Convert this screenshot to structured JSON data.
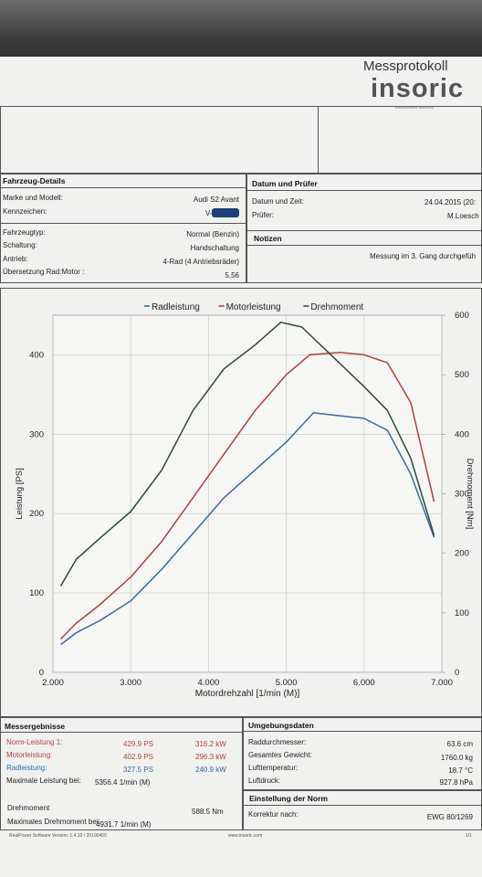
{
  "header": {
    "title": "Messprotokoll",
    "brand": "insoric",
    "brand_tagline": "measurement resolving"
  },
  "vehicle": {
    "section": "Fahrzeug-Details",
    "rows": [
      {
        "label": "Marke und Modell:",
        "value": "Audi S2 Avant"
      },
      {
        "label": "Kennzeichen:",
        "value": "V-"
      },
      {
        "label": "Fahrzeugtyp:",
        "value": "Normal (Benzin)"
      },
      {
        "label": "Schaltung:",
        "value": "Handschaltung"
      },
      {
        "label": "Antrieb:",
        "value": "4-Rad (4 Antriebsräder)"
      },
      {
        "label": "Übersetzung Rad:Motor :",
        "value": "5.56"
      }
    ]
  },
  "date": {
    "section": "Datum und Prüfer",
    "datetime_label": "Datum und Zeit:",
    "datetime_value": "24.04.2015 (20:",
    "examiner_label": "Prüfer:",
    "examiner_value": "M.Loesch"
  },
  "notes": {
    "section": "Notizen",
    "text": "Messung im 3. Gang durchgefüh"
  },
  "results": {
    "section": "Messergebnisse",
    "rows": [
      {
        "label": "Norm-Leistung 1:",
        "ps": "429.9 PS",
        "kw": "316.2 kW",
        "color": "#b04040"
      },
      {
        "label": "Motorleistung:",
        "ps": "402.9 PS",
        "kw": "296.3 kW",
        "color": "#b04040"
      },
      {
        "label": "Radleistung:",
        "ps": "327.5 PS",
        "kw": "240.9 kW",
        "color": "#3d66a8"
      }
    ],
    "max_power_label": "Maximale Leistung bei:",
    "max_power_value": "5356.4 1/min (M)",
    "torque_label": "Drehmoment",
    "torque_value": "588.5 Nm",
    "max_torque_label": "Maximales Drehmoment bei:",
    "max_torque_value": "4931.7 1/min (M)"
  },
  "environment": {
    "section": "Umgebungsdaten",
    "rows": [
      {
        "label": "Raddurchmesser:",
        "value": "63.6 cm"
      },
      {
        "label": "Gesamtes Gewicht:",
        "value": "1760.0 kg"
      },
      {
        "label": "Lufttemperatur:",
        "value": "18.7 °C"
      },
      {
        "label": "Luftdruck:",
        "value": "927.8 hPa"
      }
    ]
  },
  "norm": {
    "section": "Einstellung der Norm",
    "label": "Korrektur nach:",
    "value": "EWG 80/1269"
  },
  "footer": {
    "software": "RealPower Software Version: 1.4.10 / 20100409",
    "website": "www.insoric.com",
    "page": "1/1"
  },
  "chart_data": {
    "type": "line",
    "title": "",
    "xlabel": "Motordrehzahl [1/min (M)]",
    "ylabel": "Leistung [PS]",
    "y2label": "Drehmoment [Nm]",
    "xlim": [
      2000,
      7000
    ],
    "ylim": [
      0,
      450
    ],
    "y2lim": [
      0,
      600
    ],
    "x_ticks": [
      "2.000",
      "3.000",
      "4.000",
      "5.000",
      "6.000",
      "7.000"
    ],
    "y_ticks": [
      "0",
      "100",
      "200",
      "300",
      "400"
    ],
    "y2_ticks": [
      "0",
      "100",
      "200",
      "300",
      "400",
      "500",
      "600"
    ],
    "grid": true,
    "legend_position": "top",
    "series": [
      {
        "name": "Radleistung",
        "axis": "left",
        "color": "#3d66a8",
        "x": [
          2100,
          2300,
          2600,
          3000,
          3400,
          3800,
          4200,
          4600,
          5000,
          5350,
          5700,
          6000,
          6300,
          6600,
          6900
        ],
        "y": [
          35,
          50,
          65,
          90,
          130,
          175,
          220,
          255,
          290,
          327,
          323,
          320,
          305,
          250,
          170
        ]
      },
      {
        "name": "Motorleistung",
        "axis": "left",
        "color": "#b04040",
        "x": [
          2100,
          2300,
          2600,
          3000,
          3400,
          3800,
          4200,
          4600,
          5000,
          5300,
          5700,
          6000,
          6300,
          6600,
          6900
        ],
        "y": [
          42,
          62,
          85,
          120,
          165,
          220,
          275,
          330,
          375,
          400,
          403,
          400,
          390,
          340,
          215
        ]
      },
      {
        "name": "Drehmoment",
        "axis": "right",
        "color": "#2c4a3c",
        "x": [
          2100,
          2300,
          2600,
          3000,
          3400,
          3800,
          4200,
          4600,
          4930,
          5200,
          5600,
          6000,
          6300,
          6600,
          6900
        ],
        "y": [
          145,
          190,
          225,
          270,
          340,
          440,
          510,
          550,
          588,
          580,
          530,
          480,
          440,
          360,
          230
        ]
      }
    ]
  }
}
